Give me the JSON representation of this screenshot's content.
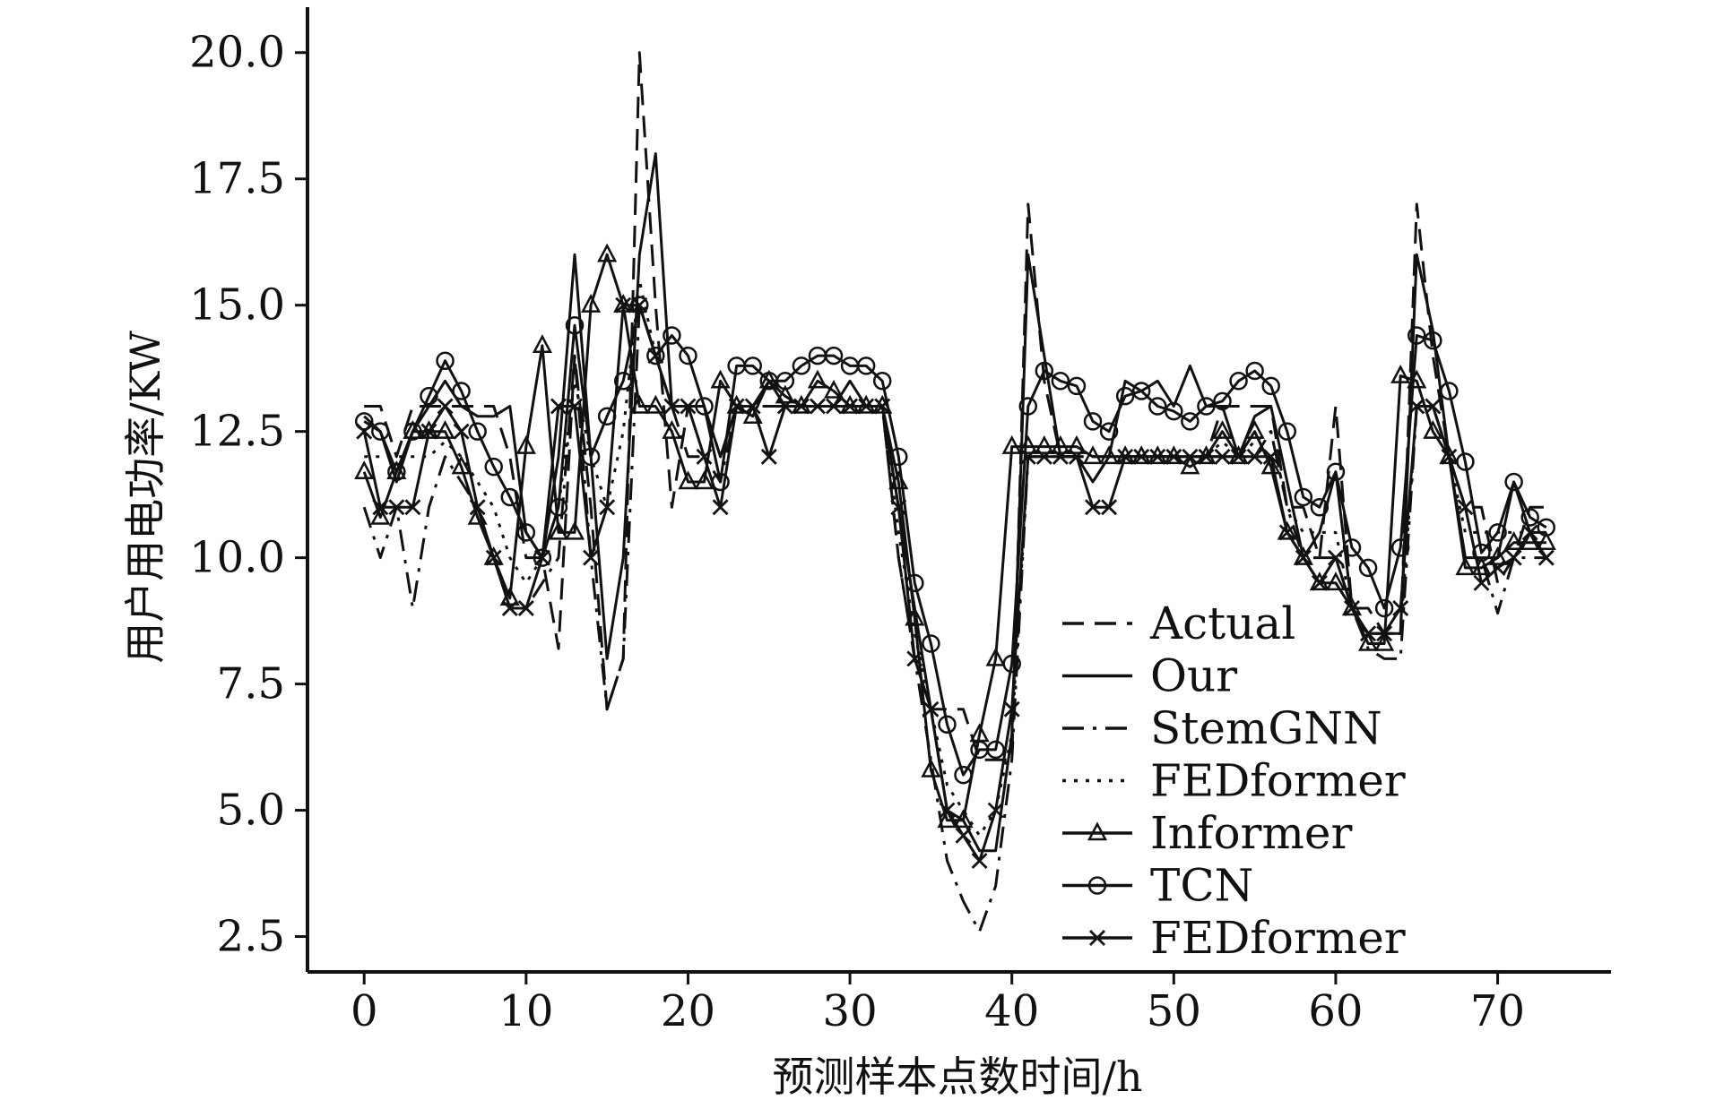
{
  "chart_data": {
    "type": "line",
    "xlabel": "预测样本点数时间/h",
    "ylabel": "用户用电功率/KW",
    "xlim": [
      -3.5,
      77
    ],
    "ylim": [
      1.8,
      20.9
    ],
    "xticks": [
      0,
      10,
      20,
      30,
      40,
      50,
      60,
      70
    ],
    "xtick_labels": [
      "0",
      "10",
      "20",
      "30",
      "40",
      "50",
      "60",
      "70"
    ],
    "yticks": [
      2.5,
      5.0,
      7.5,
      10.0,
      12.5,
      15.0,
      17.5,
      20.0
    ],
    "ytick_labels": [
      "2.5",
      "5.0",
      "7.5",
      "10.0",
      "12.5",
      "15.0",
      "17.5",
      "20.0"
    ],
    "grid": false,
    "legend_position": "bottom-right",
    "line_color": "#111111",
    "series": [
      {
        "name": "Actual",
        "style": "dashed",
        "marker": "none",
        "values": [
          13.0,
          13.0,
          12.0,
          13.0,
          13.0,
          13.0,
          13.0,
          13.0,
          13.0,
          12.0,
          10.0,
          10.0,
          8.2,
          14.0,
          11.0,
          7.0,
          8.0,
          20.0,
          15.0,
          11.0,
          13.0,
          13.0,
          12.0,
          13.0,
          13.0,
          13.0,
          13.0,
          13.0,
          13.0,
          13.0,
          13.0,
          13.0,
          13.0,
          10.0,
          8.0,
          7.0,
          7.0,
          7.0,
          6.0,
          6.0,
          6.0,
          17.0,
          13.5,
          12.0,
          12.0,
          12.0,
          12.0,
          12.0,
          12.0,
          12.0,
          12.0,
          12.0,
          12.0,
          13.0,
          13.0,
          13.0,
          13.0,
          11.0,
          11.0,
          10.0,
          13.0,
          9.0,
          9.0,
          8.5,
          8.5,
          17.0,
          14.0,
          12.0,
          11.0,
          11.0,
          9.5,
          10.0,
          11.0,
          11.0
        ]
      },
      {
        "name": "Our",
        "style": "solid",
        "marker": "none",
        "values": [
          12.8,
          12.5,
          11.5,
          12.5,
          13.0,
          13.5,
          13.0,
          12.8,
          12.8,
          13.0,
          10.5,
          10.0,
          12.0,
          16.0,
          12.0,
          8.0,
          10.0,
          16.0,
          18.0,
          13.0,
          13.0,
          13.0,
          12.0,
          13.0,
          13.0,
          13.5,
          13.0,
          13.0,
          13.0,
          13.0,
          13.5,
          13.0,
          13.0,
          11.0,
          9.0,
          7.0,
          5.0,
          4.8,
          4.2,
          4.2,
          6.5,
          16.0,
          14.0,
          12.0,
          12.0,
          11.5,
          12.0,
          13.5,
          13.3,
          13.5,
          13.0,
          13.8,
          13.0,
          13.0,
          12.0,
          12.8,
          13.0,
          11.5,
          10.0,
          10.5,
          11.7,
          9.0,
          8.5,
          8.5,
          8.5,
          16.0,
          14.5,
          12.0,
          10.0,
          10.0,
          10.0,
          11.5,
          10.5,
          10.5
        ]
      },
      {
        "name": "StemGNN",
        "style": "dashdot",
        "marker": "none",
        "values": [
          11.0,
          10.0,
          11.0,
          9.0,
          11.0,
          12.0,
          11.5,
          11.0,
          10.0,
          9.0,
          9.0,
          9.5,
          10.0,
          14.0,
          10.0,
          7.0,
          8.0,
          15.0,
          14.0,
          13.0,
          12.0,
          12.0,
          11.5,
          13.0,
          13.0,
          13.0,
          13.0,
          13.0,
          13.0,
          13.0,
          13.0,
          13.0,
          13.0,
          10.0,
          8.0,
          6.0,
          4.0,
          3.2,
          2.6,
          3.5,
          6.0,
          12.0,
          12.0,
          12.0,
          12.0,
          11.5,
          12.0,
          12.0,
          12.0,
          12.0,
          12.0,
          12.0,
          12.0,
          12.0,
          12.0,
          12.0,
          12.5,
          11.0,
          10.0,
          10.0,
          10.0,
          9.0,
          8.2,
          8.0,
          8.0,
          13.0,
          13.0,
          12.0,
          10.0,
          10.0,
          8.9,
          10.0,
          10.0,
          10.0
        ]
      },
      {
        "name": "FEDformer",
        "style": "dotted",
        "marker": "none",
        "values": [
          12.0,
          12.0,
          12.0,
          12.0,
          12.0,
          12.3,
          12.0,
          11.5,
          11.0,
          10.0,
          9.5,
          10.0,
          11.0,
          13.5,
          12.0,
          11.0,
          12.5,
          15.5,
          14.0,
          13.0,
          13.0,
          13.0,
          12.0,
          13.0,
          13.0,
          13.0,
          13.0,
          13.0,
          13.0,
          13.0,
          13.0,
          13.0,
          13.0,
          10.5,
          8.5,
          7.0,
          5.5,
          5.0,
          4.5,
          5.0,
          6.5,
          12.0,
          12.0,
          12.0,
          12.0,
          12.0,
          12.0,
          12.0,
          12.0,
          12.0,
          12.0,
          12.0,
          12.0,
          12.3,
          12.0,
          12.3,
          12.5,
          11.0,
          10.5,
          10.5,
          10.5,
          9.0,
          8.5,
          8.5,
          8.5,
          13.0,
          13.0,
          12.0,
          10.5,
          10.5,
          10.5,
          10.5,
          10.5,
          10.5
        ]
      },
      {
        "name": "Informer",
        "style": "solid",
        "marker": "triangle",
        "values": [
          11.7,
          10.8,
          11.7,
          12.5,
          12.5,
          12.5,
          11.8,
          10.8,
          10.0,
          9.2,
          12.2,
          14.2,
          10.5,
          10.5,
          15.0,
          16.0,
          15.0,
          13.0,
          13.0,
          12.5,
          11.5,
          11.5,
          13.5,
          13.0,
          12.8,
          13.5,
          13.2,
          13.0,
          13.5,
          13.3,
          13.0,
          13.0,
          13.0,
          11.5,
          8.8,
          5.8,
          4.8,
          4.8,
          6.5,
          8.0,
          12.2,
          12.2,
          12.2,
          12.2,
          12.2,
          12.0,
          12.0,
          12.0,
          12.0,
          12.0,
          12.0,
          11.8,
          12.0,
          12.5,
          12.0,
          12.5,
          11.8,
          10.5,
          10.0,
          9.5,
          9.5,
          9.0,
          8.3,
          8.3,
          13.6,
          13.5,
          12.5,
          12.0,
          9.8,
          9.8,
          10.0,
          10.3,
          10.3,
          10.3
        ]
      },
      {
        "name": "TCN",
        "style": "solid",
        "marker": "circle",
        "values": [
          12.7,
          12.5,
          11.7,
          12.5,
          13.2,
          13.9,
          13.3,
          12.5,
          11.8,
          11.2,
          10.5,
          10.0,
          11.0,
          14.6,
          12.0,
          12.8,
          13.5,
          15.0,
          14.0,
          14.4,
          14.0,
          13.0,
          11.5,
          13.8,
          13.8,
          13.5,
          13.5,
          13.8,
          14.0,
          14.0,
          13.8,
          13.8,
          13.5,
          12.0,
          9.5,
          8.3,
          6.7,
          5.7,
          6.2,
          6.2,
          7.9,
          13.0,
          13.7,
          13.5,
          13.4,
          12.7,
          12.5,
          13.2,
          13.3,
          13.0,
          12.9,
          12.7,
          13.0,
          13.1,
          13.5,
          13.7,
          13.4,
          12.5,
          11.2,
          11.0,
          11.7,
          10.2,
          9.8,
          9.0,
          10.2,
          14.4,
          14.3,
          13.3,
          11.9,
          10.1,
          10.5,
          11.5,
          10.8,
          10.6
        ]
      },
      {
        "name": "FEDformer",
        "style": "solid",
        "marker": "cross",
        "values": [
          12.5,
          11.0,
          11.0,
          11.0,
          12.5,
          13.0,
          12.5,
          11.0,
          10.0,
          9.0,
          9.0,
          10.0,
          13.0,
          13.0,
          10.0,
          11.0,
          15.0,
          15.0,
          14.0,
          13.0,
          13.0,
          12.0,
          11.0,
          13.0,
          13.0,
          12.0,
          13.0,
          13.0,
          13.0,
          13.0,
          13.0,
          13.0,
          13.0,
          11.0,
          8.0,
          7.0,
          5.0,
          4.5,
          4.0,
          5.0,
          7.0,
          12.0,
          12.0,
          12.0,
          12.0,
          11.0,
          11.0,
          12.0,
          12.0,
          12.0,
          12.0,
          12.0,
          12.0,
          12.0,
          12.0,
          12.0,
          12.0,
          10.5,
          10.0,
          9.5,
          10.0,
          9.0,
          8.5,
          8.5,
          9.0,
          13.0,
          13.0,
          12.0,
          11.0,
          9.5,
          9.8,
          10.0,
          10.5,
          10.0
        ]
      }
    ]
  }
}
